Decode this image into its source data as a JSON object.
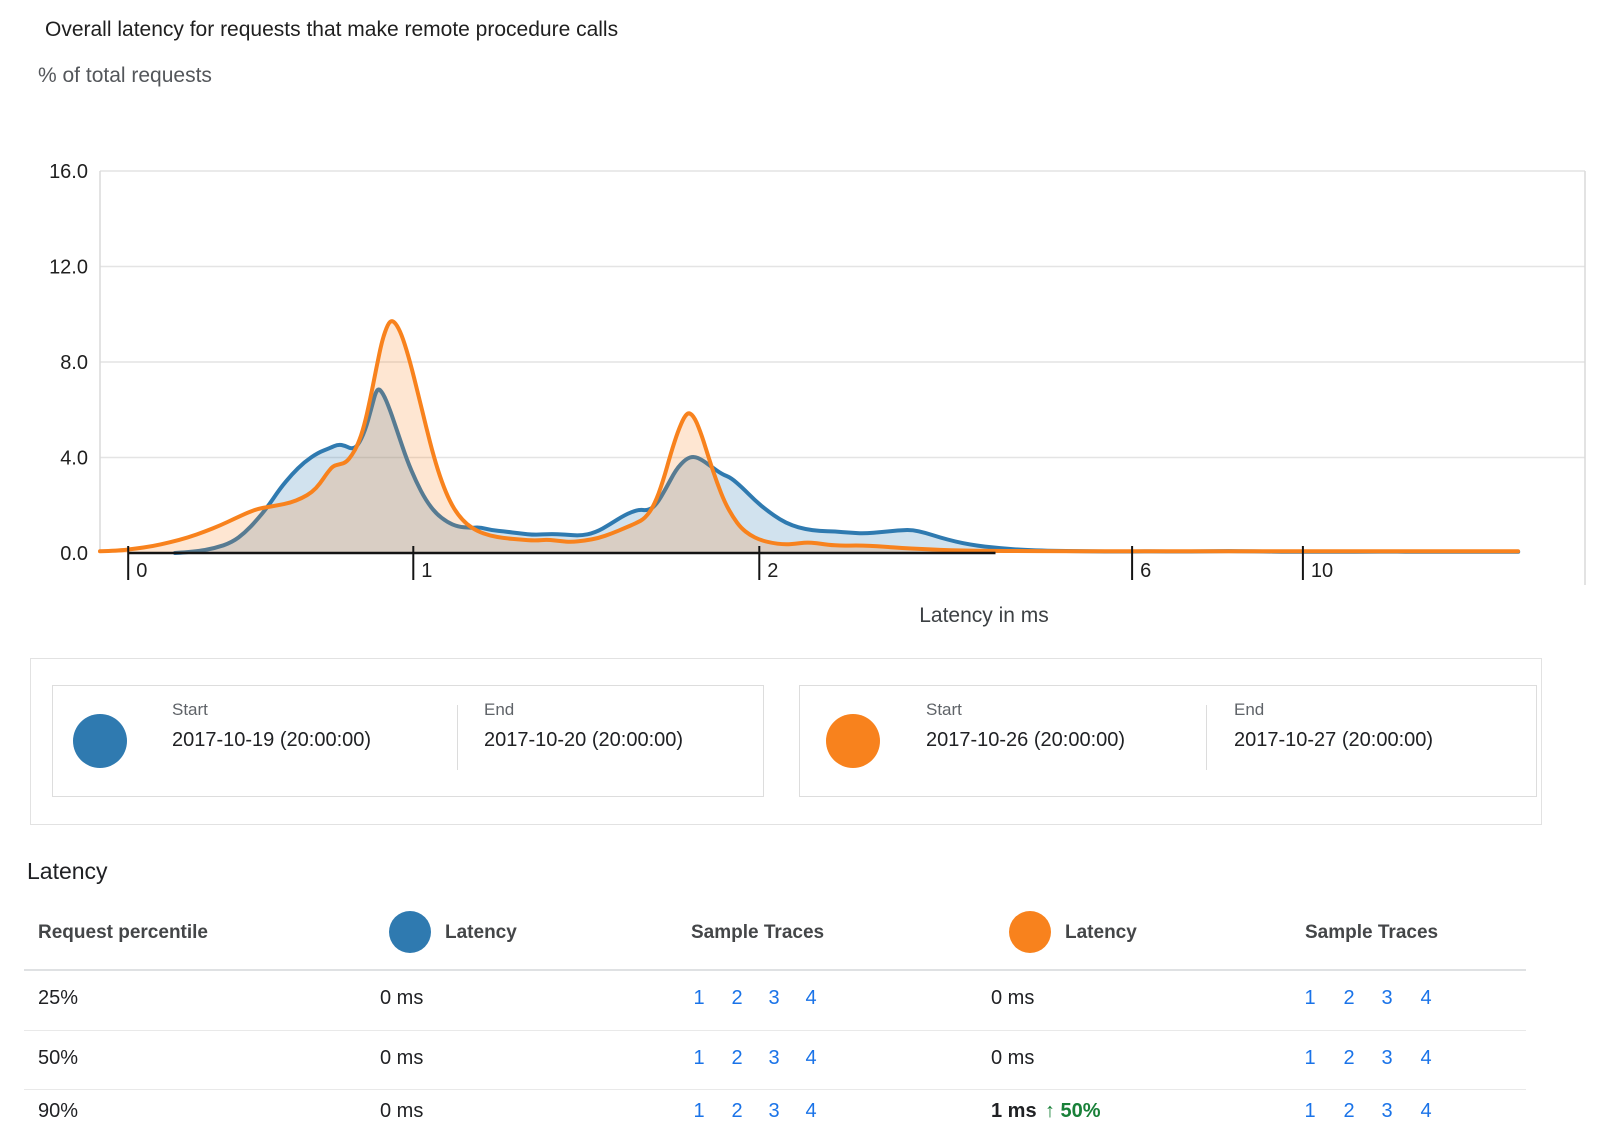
{
  "chart": {
    "title": "Overall latency for requests that make remote procedure calls",
    "ylabel": "% of total requests",
    "xlabel": "Latency in ms"
  },
  "chart_data": {
    "type": "area",
    "title": "Overall latency for requests that make remote procedure calls",
    "xlabel": "Latency in ms",
    "ylabel": "% of total requests",
    "ylim": [
      0,
      16
    ],
    "grid": true,
    "x_scale_note": "nonlinear latency axis; tick positions given as fraction of plot width",
    "y_ticks": [
      {
        "label": "0.0",
        "value": 0
      },
      {
        "label": "4.0",
        "value": 4
      },
      {
        "label": "8.0",
        "value": 8
      },
      {
        "label": "12.0",
        "value": 12
      },
      {
        "label": "16.0",
        "value": 16
      }
    ],
    "x_ticks": [
      {
        "label": "0",
        "pos": 0.019
      },
      {
        "label": "1",
        "pos": 0.211
      },
      {
        "label": "2",
        "pos": 0.444
      },
      {
        "label": "6",
        "pos": 0.695
      },
      {
        "label": "10",
        "pos": 0.81
      }
    ],
    "axis_line_span": [
      0.019,
      0.603
    ],
    "series": [
      {
        "name": "2017-10-19 (20:00:00) to 2017-10-20 (20:00:00)",
        "color": "#2f7ab0",
        "fill": "rgba(47,122,176,0.22)",
        "points": [
          [
            0.0505,
            0
          ],
          [
            0.064,
            0.05
          ],
          [
            0.0774,
            0.2
          ],
          [
            0.0889,
            0.45
          ],
          [
            0.0976,
            0.85
          ],
          [
            0.1051,
            1.35
          ],
          [
            0.1131,
            1.95
          ],
          [
            0.1212,
            2.7
          ],
          [
            0.1293,
            3.3
          ],
          [
            0.1374,
            3.8
          ],
          [
            0.1468,
            4.2
          ],
          [
            0.1549,
            4.4
          ],
          [
            0.1603,
            4.55
          ],
          [
            0.165,
            4.5
          ],
          [
            0.1697,
            4.35
          ],
          [
            0.1737,
            4.5
          ],
          [
            0.1784,
            5.1
          ],
          [
            0.1825,
            6.0
          ],
          [
            0.1865,
            6.95
          ],
          [
            0.1906,
            6.7
          ],
          [
            0.1953,
            6.0
          ],
          [
            0.2007,
            5.0
          ],
          [
            0.2067,
            3.9
          ],
          [
            0.2128,
            3.0
          ],
          [
            0.2195,
            2.2
          ],
          [
            0.2263,
            1.65
          ],
          [
            0.2337,
            1.3
          ],
          [
            0.2411,
            1.1
          ],
          [
            0.2492,
            1.05
          ],
          [
            0.2559,
            1.08
          ],
          [
            0.264,
            0.95
          ],
          [
            0.2727,
            0.9
          ],
          [
            0.2828,
            0.82
          ],
          [
            0.2929,
            0.76
          ],
          [
            0.303,
            0.8
          ],
          [
            0.3131,
            0.78
          ],
          [
            0.3232,
            0.72
          ],
          [
            0.3333,
            0.85
          ],
          [
            0.3434,
            1.2
          ],
          [
            0.3535,
            1.6
          ],
          [
            0.3623,
            1.82
          ],
          [
            0.369,
            1.78
          ],
          [
            0.3744,
            2.0
          ],
          [
            0.3811,
            2.7
          ],
          [
            0.3879,
            3.5
          ],
          [
            0.3946,
            3.95
          ],
          [
            0.4,
            4.05
          ],
          [
            0.4054,
            3.9
          ],
          [
            0.4121,
            3.6
          ],
          [
            0.4189,
            3.3
          ],
          [
            0.4249,
            3.15
          ],
          [
            0.4323,
            2.75
          ],
          [
            0.4411,
            2.2
          ],
          [
            0.4498,
            1.75
          ],
          [
            0.4579,
            1.4
          ],
          [
            0.466,
            1.15
          ],
          [
            0.4747,
            1.0
          ],
          [
            0.4848,
            0.92
          ],
          [
            0.4949,
            0.9
          ],
          [
            0.5051,
            0.85
          ],
          [
            0.5152,
            0.82
          ],
          [
            0.5266,
            0.88
          ],
          [
            0.5374,
            0.95
          ],
          [
            0.5468,
            0.97
          ],
          [
            0.5556,
            0.85
          ],
          [
            0.5657,
            0.65
          ],
          [
            0.5758,
            0.48
          ],
          [
            0.5859,
            0.35
          ],
          [
            0.596,
            0.27
          ],
          [
            0.6061,
            0.2
          ],
          [
            0.6162,
            0.15
          ],
          [
            0.6296,
            0.11
          ],
          [
            0.6465,
            0.09
          ],
          [
            0.6667,
            0.07
          ],
          [
            0.6869,
            0.06
          ],
          [
            0.7071,
            0.07
          ],
          [
            0.7306,
            0.06
          ],
          [
            0.7542,
            0.08
          ],
          [
            0.7778,
            0.07
          ],
          [
            0.8013,
            0.05
          ],
          [
            0.8283,
            0.05
          ],
          [
            0.862,
            0.06
          ],
          [
            0.8956,
            0.05
          ],
          [
            0.9293,
            0.05
          ],
          [
            0.955,
            0.05
          ]
        ]
      },
      {
        "name": "2017-10-26 (20:00:00) to 2017-10-27 (20:00:00)",
        "color": "#f8821d",
        "fill": "rgba(248,130,29,0.20)",
        "points": [
          [
            0,
            0.07
          ],
          [
            0.0121,
            0.1
          ],
          [
            0.0236,
            0.18
          ],
          [
            0.035,
            0.28
          ],
          [
            0.0471,
            0.45
          ],
          [
            0.0593,
            0.65
          ],
          [
            0.0707,
            0.9
          ],
          [
            0.0808,
            1.15
          ],
          [
            0.0909,
            1.45
          ],
          [
            0.0997,
            1.7
          ],
          [
            0.1064,
            1.85
          ],
          [
            0.1131,
            1.93
          ],
          [
            0.1198,
            2.0
          ],
          [
            0.1279,
            2.1
          ],
          [
            0.136,
            2.3
          ],
          [
            0.1428,
            2.55
          ],
          [
            0.1481,
            2.9
          ],
          [
            0.1529,
            3.35
          ],
          [
            0.1569,
            3.65
          ],
          [
            0.1616,
            3.72
          ],
          [
            0.1657,
            3.8
          ],
          [
            0.1697,
            4.1
          ],
          [
            0.1737,
            4.55
          ],
          [
            0.1778,
            5.3
          ],
          [
            0.1818,
            6.4
          ],
          [
            0.1859,
            7.7
          ],
          [
            0.1899,
            8.9
          ],
          [
            0.1939,
            9.6
          ],
          [
            0.1966,
            9.75
          ],
          [
            0.2,
            9.55
          ],
          [
            0.204,
            9.0
          ],
          [
            0.2088,
            8.0
          ],
          [
            0.2141,
            6.7
          ],
          [
            0.2195,
            5.3
          ],
          [
            0.2249,
            4.0
          ],
          [
            0.2303,
            2.95
          ],
          [
            0.2357,
            2.15
          ],
          [
            0.2411,
            1.6
          ],
          [
            0.2471,
            1.2
          ],
          [
            0.2539,
            0.92
          ],
          [
            0.2626,
            0.72
          ],
          [
            0.2727,
            0.62
          ],
          [
            0.2828,
            0.56
          ],
          [
            0.2929,
            0.52
          ],
          [
            0.3016,
            0.56
          ],
          [
            0.3098,
            0.5
          ],
          [
            0.3178,
            0.46
          ],
          [
            0.3266,
            0.52
          ],
          [
            0.3354,
            0.62
          ],
          [
            0.3448,
            0.82
          ],
          [
            0.3535,
            1.05
          ],
          [
            0.3609,
            1.25
          ],
          [
            0.367,
            1.45
          ],
          [
            0.3731,
            2.0
          ],
          [
            0.3791,
            3.0
          ],
          [
            0.3845,
            4.2
          ],
          [
            0.3892,
            5.1
          ],
          [
            0.3933,
            5.7
          ],
          [
            0.3966,
            5.9
          ],
          [
            0.4007,
            5.65
          ],
          [
            0.4054,
            4.9
          ],
          [
            0.4101,
            3.95
          ],
          [
            0.4155,
            2.95
          ],
          [
            0.4209,
            2.1
          ],
          [
            0.4263,
            1.5
          ],
          [
            0.4316,
            1.05
          ],
          [
            0.4377,
            0.75
          ],
          [
            0.4444,
            0.55
          ],
          [
            0.4525,
            0.42
          ],
          [
            0.4599,
            0.36
          ],
          [
            0.468,
            0.38
          ],
          [
            0.4754,
            0.45
          ],
          [
            0.4828,
            0.42
          ],
          [
            0.4902,
            0.34
          ],
          [
            0.4997,
            0.3
          ],
          [
            0.5091,
            0.32
          ],
          [
            0.5185,
            0.3
          ],
          [
            0.5286,
            0.26
          ],
          [
            0.5401,
            0.21
          ],
          [
            0.5522,
            0.17
          ],
          [
            0.5657,
            0.13
          ],
          [
            0.5805,
            0.11
          ],
          [
            0.5993,
            0.09
          ],
          [
            0.6195,
            0.08
          ],
          [
            0.6465,
            0.08
          ],
          [
            0.6801,
            0.07
          ],
          [
            0.7205,
            0.07
          ],
          [
            0.7609,
            0.07
          ],
          [
            0.8081,
            0.07
          ],
          [
            0.862,
            0.07
          ],
          [
            0.9091,
            0.07
          ],
          [
            0.9549,
            0.07
          ]
        ]
      }
    ]
  },
  "colors": {
    "series_blue": "#2f7ab0",
    "series_orange": "#f8821d",
    "link_blue": "#1a73e8",
    "change_green": "#188038"
  },
  "legend": {
    "ranges": [
      {
        "start_label": "Start",
        "start_value": "2017-10-19 (20:00:00)",
        "end_label": "End",
        "end_value": "2017-10-20 (20:00:00)",
        "color": "#2f7ab0"
      },
      {
        "start_label": "Start",
        "start_value": "2017-10-26 (20:00:00)",
        "end_label": "End",
        "end_value": "2017-10-27 (20:00:00)",
        "color": "#f8821d"
      }
    ]
  },
  "table": {
    "section_title": "Latency",
    "headers": {
      "percentile": "Request percentile",
      "latency_a": "Latency",
      "traces_a": "Sample Traces",
      "latency_b": "Latency",
      "traces_b": "Sample Traces"
    },
    "rows": [
      {
        "percentile": "25%",
        "latency_a": "0 ms",
        "traces_a": [
          "1",
          "2",
          "3",
          "4"
        ],
        "latency_b": "0 ms",
        "latency_b_change": "",
        "traces_b": [
          "1",
          "2",
          "3",
          "4"
        ]
      },
      {
        "percentile": "50%",
        "latency_a": "0 ms",
        "traces_a": [
          "1",
          "2",
          "3",
          "4"
        ],
        "latency_b": "0 ms",
        "latency_b_change": "",
        "traces_b": [
          "1",
          "2",
          "3",
          "4"
        ]
      },
      {
        "percentile": "90%",
        "latency_a": "0 ms",
        "traces_a": [
          "1",
          "2",
          "3",
          "4"
        ],
        "latency_b": "1 ms",
        "latency_b_change": "↑ 50%",
        "traces_b": [
          "1",
          "2",
          "3",
          "4"
        ]
      }
    ]
  }
}
